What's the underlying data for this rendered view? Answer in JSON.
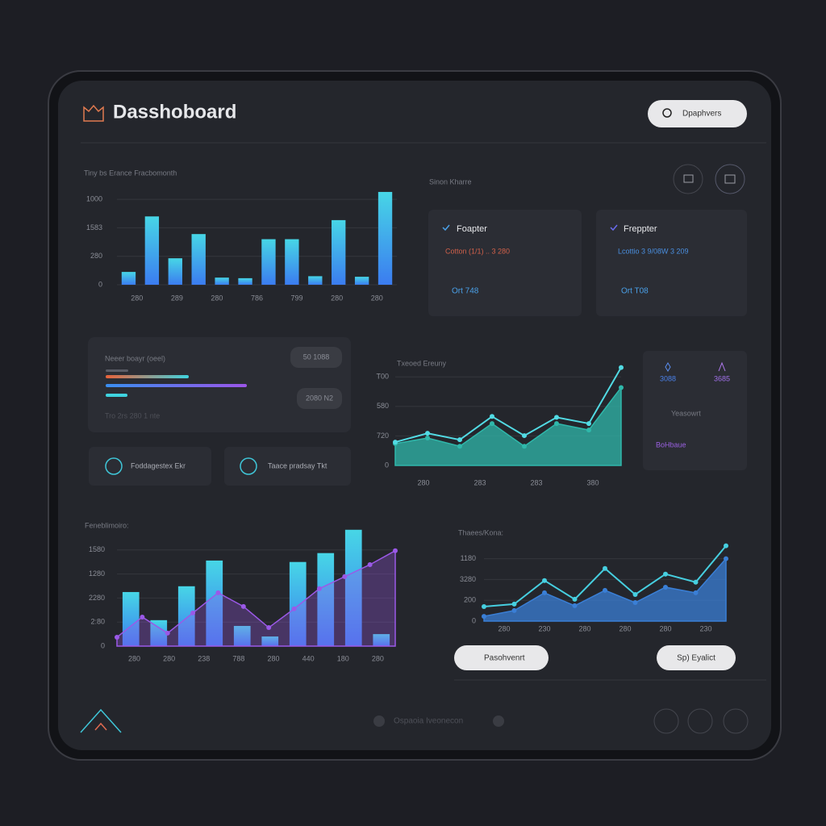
{
  "header": {
    "title": "Dasshoboard",
    "search": "Dpaphvers"
  },
  "top_left": {
    "caption": "Tiny bs Erance Fracbomonth"
  },
  "top_right": {
    "caption": "Sinon Kharre",
    "cards": [
      {
        "title": "Foapter",
        "detail": "Cotton  (1/1) .. 3 280",
        "footer": "Ort 748"
      },
      {
        "title": "Freppter",
        "detail": "Lcottio   3 9/08W  3 209",
        "footer": "Ort T08"
      }
    ]
  },
  "progress_panel": {
    "caption": "Neeer boayr (oeel)",
    "badges": [
      "50 1088",
      "2080 N2"
    ],
    "footer": "Tro  2rs  280  1 nte"
  },
  "buttons": [
    "Foddagestex Ekr",
    "Taace pradsay Tkt"
  ],
  "middle_chart": {
    "caption": "Txeoed Ereuny"
  },
  "side_panel": {
    "values": [
      "3088",
      "3685"
    ],
    "label": "Yeasowrt",
    "link": "BoHbaue"
  },
  "bottom_left": {
    "caption": "Feneblimoiro:"
  },
  "bottom_right": {
    "caption": "Thaees/Kona:",
    "buttons": [
      "Pasohvenrt",
      "Sp) Eyalict"
    ]
  },
  "footer": {
    "text": "Ospaoia Iveonecon"
  },
  "charts": [
    {
      "type": "bar",
      "ylim": [
        0,
        3.4
      ],
      "yticks": [
        0,
        {
          "value": 1,
          "label": "280"
        },
        {
          "value": 2,
          "label": "1583"
        },
        {
          "value": 3,
          "label": "1000"
        }
      ],
      "xlabels": [
        "280",
        "289",
        "280",
        "786",
        "799",
        "280",
        "280"
      ],
      "values": [
        0.45,
        2.4,
        0.93,
        1.78,
        0.25,
        0.23,
        1.6,
        1.6,
        0.3,
        2.27,
        0.28,
        3.26
      ],
      "colors": [
        "#47d6e6",
        "#3b7cf0"
      ]
    },
    {
      "type": "line",
      "ylim": [
        0,
        3.5
      ],
      "yticks": [
        0,
        {
          "value": 1,
          "label": "720"
        },
        {
          "value": 2,
          "label": "580"
        },
        {
          "value": 3,
          "label": "T00"
        }
      ],
      "xlabels": [
        "280",
        "283",
        "283",
        "380"
      ],
      "series": [
        {
          "color": "#2fb8ab",
          "area": true,
          "values": [
            0.74,
            0.93,
            0.65,
            1.42,
            0.65,
            1.42,
            1.2,
            2.64
          ]
        },
        {
          "color": "#52dbe4",
          "area": false,
          "values": [
            0.79,
            1.09,
            0.87,
            1.66,
            1.01,
            1.63,
            1.42,
            3.32
          ]
        }
      ]
    },
    {
      "type": "combo",
      "ylim": [
        0,
        5
      ],
      "yticks": [
        0,
        {
          "value": 1,
          "label": "2:80"
        },
        {
          "value": 2,
          "label": "2280"
        },
        {
          "value": 3,
          "label": "1280"
        },
        {
          "value": 4,
          "label": "1580"
        }
      ],
      "xlabels": [
        "280",
        "280",
        "238",
        "788",
        "280",
        "440",
        "180",
        "280"
      ],
      "values": [
        2.25,
        1.08,
        2.49,
        3.56,
        0.84,
        0.4,
        3.5,
        3.87,
        4.84,
        0.5
      ],
      "colors": [
        "#47d6e6",
        "#3b7cf0"
      ],
      "series": [
        {
          "color": "#9b59e8",
          "area": true,
          "values": [
            0.37,
            1.21,
            0.54,
            1.38,
            2.22,
            1.65,
            0.77,
            1.55,
            2.39,
            2.89,
            3.39,
            3.97
          ]
        }
      ]
    },
    {
      "type": "line",
      "ylim": [
        0,
        3.8
      ],
      "yticks": [
        0,
        {
          "value": 1,
          "label": "200"
        },
        {
          "value": 2,
          "label": "3280"
        },
        {
          "value": 3,
          "label": "1180"
        }
      ],
      "xlabels": [
        "280",
        "230",
        "280",
        "280",
        "280",
        "230"
      ],
      "series": [
        {
          "color": "#3a7fd6",
          "area": true,
          "values": [
            0.23,
            0.51,
            1.36,
            0.74,
            1.48,
            0.89,
            1.63,
            1.36,
            3.0
          ]
        },
        {
          "color": "#46cfe0",
          "area": false,
          "values": [
            0.7,
            0.82,
            1.95,
            1.05,
            2.53,
            1.28,
            2.26,
            1.87,
            3.62
          ]
        }
      ]
    }
  ]
}
